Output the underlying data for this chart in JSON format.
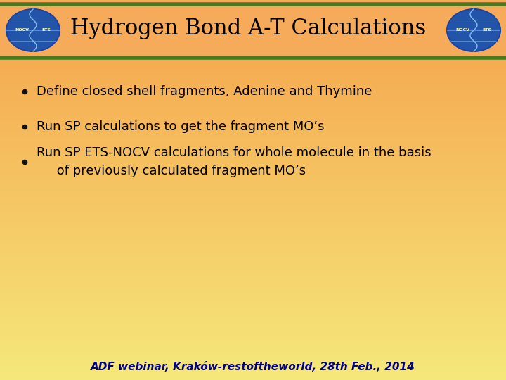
{
  "title": "Hydrogen Bond A-T Calculations",
  "bullets": [
    "Define closed shell fragments, Adenine and Thymine",
    "Run SP calculations to get the fragment MO’s",
    "Run SP ETS-NOCV calculations for whole molecule in the basis\n     of previously calculated fragment MO’s"
  ],
  "footer": "ADF webinar, Kraków-restoftheworld, 28th Feb., 2014",
  "bg_orange": [
    0.96,
    0.63,
    0.29
  ],
  "bg_yellow": [
    0.96,
    0.91,
    0.48
  ],
  "header_border_color": "#4A7A20",
  "title_font_size": 22,
  "bullet_font_size": 13,
  "footer_font_size": 11,
  "title_color": "#000000",
  "bullet_color": "#000000",
  "footer_color": "#00008B",
  "globe_color": "#2255AA",
  "globe_text_color": "#FFFF99"
}
